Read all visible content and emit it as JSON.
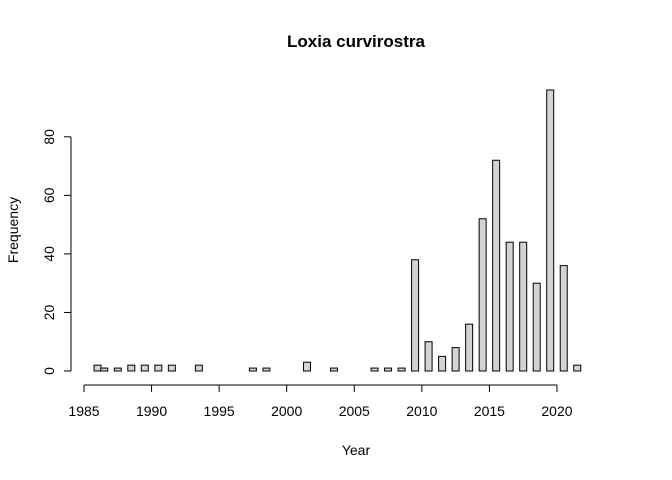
{
  "chart_data": {
    "type": "bar",
    "title": "Loxia curvirostra",
    "xlabel": "Year",
    "ylabel": "Frequency",
    "xlim": [
      1985,
      2022
    ],
    "ylim": [
      0,
      96
    ],
    "x_ticks": [
      1985,
      1990,
      1995,
      2000,
      2005,
      2010,
      2015,
      2020
    ],
    "y_ticks": [
      0,
      20,
      40,
      60,
      80
    ],
    "grid": false,
    "bar_color": "#d3d3d3",
    "series": [
      {
        "x": [
          1986,
          1986.5,
          1987.5,
          1988.5,
          1989.5,
          1990.5,
          1991.5,
          1993.5,
          1997.5,
          1998.5,
          2001.5,
          2003.5,
          2006.5,
          2007.5,
          2008.5,
          2009.5,
          2010.5,
          2011.5,
          2012.5,
          2013.5,
          2014.5,
          2015.5,
          2016.5,
          2017.5,
          2018.5,
          2019.5,
          2020.5,
          2021.5
        ],
        "values": [
          2,
          1,
          1,
          2,
          2,
          2,
          2,
          2,
          1,
          1,
          3,
          1,
          1,
          1,
          1,
          38,
          10,
          5,
          8,
          16,
          52,
          72,
          44,
          44,
          30,
          96,
          36,
          2
        ]
      }
    ]
  }
}
